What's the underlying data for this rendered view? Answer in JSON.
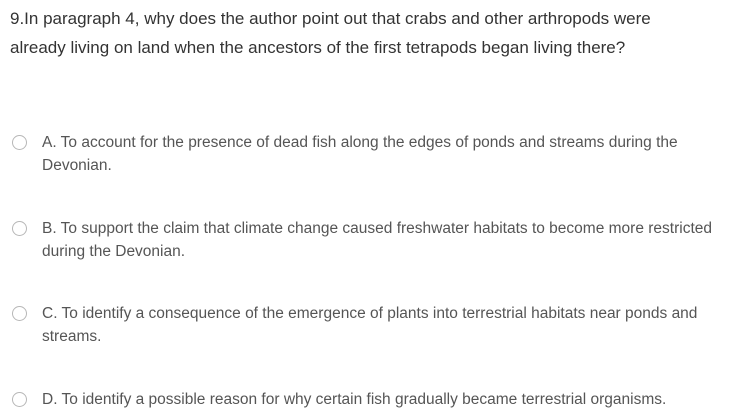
{
  "question": {
    "text": "9.In paragraph 4, why does the author point out that crabs and other arthropods were already living on land when the ancestors of the first tetrapods began living there?"
  },
  "options": [
    {
      "text": "A. To account for the presence of dead fish along the edges of ponds and streams during the Devonian."
    },
    {
      "text": "B. To support the claim that climate change caused freshwater habitats to become more restricted during the Devonian."
    },
    {
      "text": "C. To identify a consequence of the emergence of plants into terrestrial habitats near ponds and streams."
    },
    {
      "text": "D. To identify a possible reason for why certain fish gradually became terrestrial organisms."
    }
  ],
  "icons": {
    "radio": "radio-button-unselected-icon"
  },
  "colors": {
    "question_text": "#333333",
    "option_text": "#555555",
    "radio_border": "#b7b7b7"
  }
}
